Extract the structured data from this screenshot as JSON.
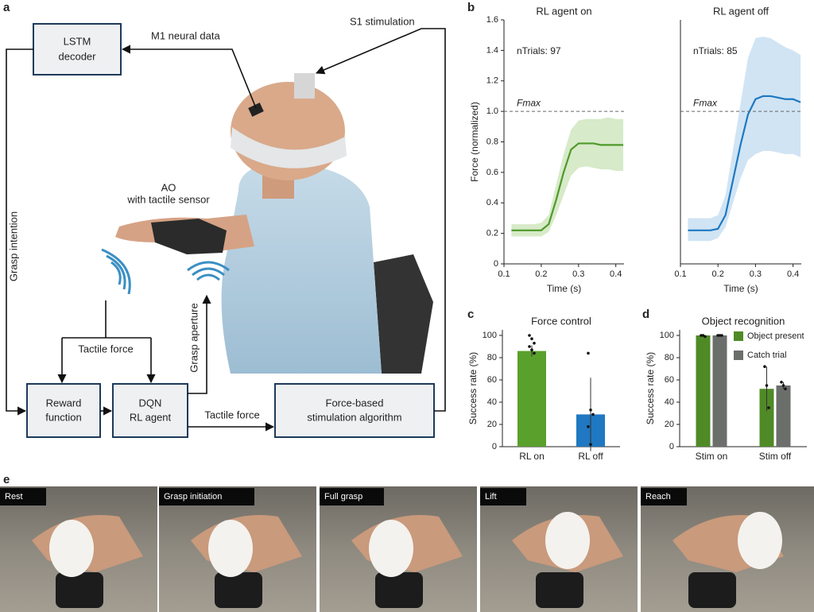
{
  "panel_labels": [
    "a",
    "b",
    "c",
    "d",
    "e"
  ],
  "diagram": {
    "nodes": [
      {
        "lines": [
          "LSTM",
          "decoder"
        ]
      },
      {
        "lines": [
          "Reward",
          "function"
        ]
      },
      {
        "lines": [
          "DQN",
          "RL agent"
        ]
      },
      {
        "lines": [
          "Force-based",
          "stimulation algorithm"
        ]
      }
    ],
    "labels": {
      "m1": "M1 neural data",
      "s1": "S1 stimulation",
      "ao": [
        "AO",
        "with tactile sensor"
      ],
      "intention": "Grasp intention",
      "tactile_top": "Tactile force",
      "tactile_bottom": "Tactile force",
      "aperture": "Grasp aperture"
    }
  },
  "chart_data": [
    {
      "type": "line",
      "title": "RL agent on",
      "annotation": "nTrials: 97",
      "x": [
        0.12,
        0.14,
        0.16,
        0.18,
        0.2,
        0.22,
        0.24,
        0.26,
        0.28,
        0.3,
        0.32,
        0.34,
        0.36,
        0.38,
        0.4,
        0.42
      ],
      "series": [
        {
          "color": "#4f9a2a",
          "band_color": "#d3e8c3",
          "values": [
            0.22,
            0.22,
            0.22,
            0.22,
            0.22,
            0.26,
            0.42,
            0.6,
            0.75,
            0.79,
            0.79,
            0.79,
            0.78,
            0.78,
            0.78,
            0.78
          ],
          "lower": [
            0.18,
            0.18,
            0.18,
            0.18,
            0.18,
            0.21,
            0.32,
            0.45,
            0.58,
            0.63,
            0.64,
            0.63,
            0.62,
            0.62,
            0.61,
            0.61
          ],
          "upper": [
            0.26,
            0.26,
            0.26,
            0.26,
            0.27,
            0.32,
            0.52,
            0.72,
            0.88,
            0.94,
            0.95,
            0.95,
            0.95,
            0.96,
            0.95,
            0.95
          ]
        }
      ],
      "reference_line": {
        "value": 1,
        "label": "Fmax"
      },
      "xlabel": "Time (s)",
      "ylabel": "Force (normalized)",
      "xlim": [
        0.1,
        0.422
      ],
      "ylim": [
        0,
        1.6
      ],
      "xticks": [
        0.1,
        0.2,
        0.3,
        0.4
      ],
      "yticks": [
        0,
        0.2,
        0.4,
        0.6,
        0.8,
        {
          "value": 1,
          "label": "1.0"
        },
        1.2,
        1.4,
        1.6
      ]
    },
    {
      "type": "line",
      "title": "RL agent off",
      "annotation": "nTrials: 85",
      "x": [
        0.12,
        0.14,
        0.16,
        0.18,
        0.2,
        0.22,
        0.24,
        0.26,
        0.28,
        0.3,
        0.32,
        0.34,
        0.36,
        0.38,
        0.4,
        0.42
      ],
      "series": [
        {
          "color": "#1f78c1",
          "band_color": "#cbe1f3",
          "values": [
            0.22,
            0.22,
            0.22,
            0.22,
            0.23,
            0.32,
            0.55,
            0.78,
            0.98,
            1.08,
            1.1,
            1.1,
            1.09,
            1.08,
            1.08,
            1.06
          ],
          "lower": [
            0.15,
            0.15,
            0.15,
            0.15,
            0.17,
            0.24,
            0.4,
            0.56,
            0.68,
            0.72,
            0.74,
            0.74,
            0.73,
            0.72,
            0.72,
            0.7
          ],
          "upper": [
            0.3,
            0.3,
            0.3,
            0.3,
            0.32,
            0.45,
            0.75,
            1.05,
            1.35,
            1.48,
            1.49,
            1.48,
            1.45,
            1.42,
            1.4,
            1.37
          ]
        }
      ],
      "reference_line": {
        "value": 1,
        "label": "Fmax"
      },
      "xlabel": "Time (s)",
      "xlim": [
        0.1,
        0.422
      ],
      "ylim": [
        0,
        1.6
      ],
      "xticks": [
        0.1,
        0.2,
        0.3,
        0.4
      ]
    },
    {
      "type": "bar",
      "title": "Force control",
      "categories": [
        "RL on",
        "RL off"
      ],
      "values": [
        86,
        29
      ],
      "errors": [
        5,
        33
      ],
      "colors": [
        "#5aa02c",
        "#1f78c1"
      ],
      "points": [
        [
          100,
          97,
          93,
          90,
          87,
          84
        ],
        [
          84,
          33,
          29,
          18,
          2
        ]
      ],
      "ylabel": "Success rate (%)",
      "ylim": [
        0,
        105
      ],
      "yticks": [
        0,
        20,
        40,
        60,
        80,
        100
      ]
    },
    {
      "type": "grouped_bar",
      "title": "Object recognition",
      "categories": [
        "Stim on",
        "Stim off"
      ],
      "series": [
        {
          "name": "Object present",
          "color": "#4f8a26",
          "values": [
            100,
            52
          ],
          "errors": [
            0,
            20
          ],
          "points": [
            [
              100,
              100,
              99
            ],
            [
              72,
              55,
              35
            ]
          ]
        },
        {
          "name": "Catch trial",
          "color": "#6b6e6b",
          "values": [
            100,
            55
          ],
          "errors": [
            0,
            3
          ],
          "points": [
            [
              100,
              100,
              100
            ],
            [
              58,
              55,
              52
            ]
          ]
        }
      ],
      "ylabel": "Success rate (%)",
      "ylim": [
        0,
        105
      ],
      "yticks": [
        0,
        20,
        40,
        60,
        80,
        100
      ]
    }
  ],
  "photos": {
    "labels": [
      "Rest",
      "Grasp initiation",
      "Full grasp",
      "Lift",
      "Reach"
    ]
  }
}
